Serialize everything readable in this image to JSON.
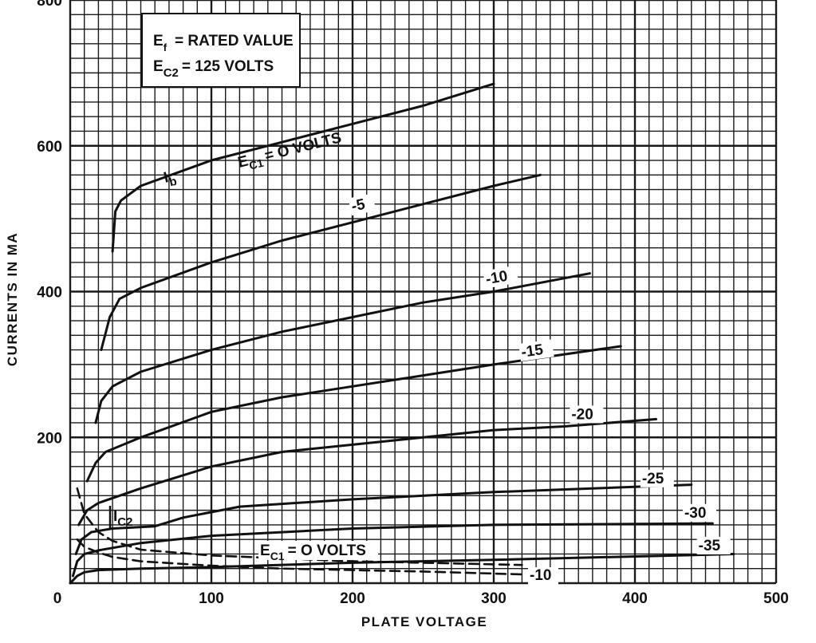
{
  "chart_data": {
    "type": "line",
    "xlabel": "PLATE VOLTAGE",
    "ylabel": "CURRENTS IN MA",
    "xlim": [
      0,
      500
    ],
    "ylim": [
      0,
      800
    ],
    "x_ticks": [
      "0",
      "100",
      "200",
      "300",
      "400",
      "500"
    ],
    "y_ticks": [
      "200",
      "400",
      "600",
      "800"
    ],
    "grid": true,
    "legend_box": {
      "line1_sym": "E",
      "line1_sub": "f",
      "line1_text": "= RATED VALUE",
      "line2_sym": "E",
      "line2_sub": "C2",
      "line2_text": "= 125 VOLTS"
    },
    "annotations": {
      "ib_sym": "I",
      "ib_sub": "b",
      "ic2_sym": "I",
      "ic2_sub": "C2",
      "ec1_0_sym": "E",
      "ec1_0_sub": "C1",
      "ec1_0_text": "= O VOLTS",
      "ic2_ec1_0_sym": "E",
      "ic2_ec1_0_sub": "C1",
      "ic2_ec1_0_text": "= O VOLTS",
      "ic2_m10": "-10"
    },
    "plate_current_series": [
      {
        "name": "O VOLTS",
        "x": [
          30,
          32,
          36,
          50,
          100,
          150,
          200,
          250,
          300
        ],
        "y": [
          455,
          510,
          525,
          545,
          580,
          605,
          630,
          655,
          685
        ]
      },
      {
        "name": "-5",
        "x": [
          22,
          28,
          35,
          50,
          100,
          150,
          200,
          250,
          300,
          333
        ],
        "y": [
          320,
          365,
          390,
          405,
          440,
          470,
          495,
          520,
          545,
          560
        ]
      },
      {
        "name": "-10",
        "x": [
          18,
          22,
          30,
          50,
          100,
          150,
          200,
          250,
          300,
          368
        ],
        "y": [
          220,
          250,
          270,
          290,
          320,
          345,
          365,
          385,
          400,
          425
        ]
      },
      {
        "name": "-15",
        "x": [
          12,
          18,
          25,
          50,
          100,
          150,
          200,
          250,
          300,
          390
        ],
        "y": [
          140,
          165,
          180,
          200,
          235,
          255,
          270,
          285,
          300,
          325
        ]
      },
      {
        "name": "-20",
        "x": [
          6,
          12,
          20,
          50,
          100,
          150,
          200,
          250,
          300,
          350,
          415
        ],
        "y": [
          80,
          100,
          110,
          130,
          160,
          180,
          190,
          200,
          210,
          215,
          225
        ]
      },
      {
        "name": "-25",
        "x": [
          4,
          8,
          15,
          30,
          60,
          80,
          120,
          200,
          300,
          440
        ],
        "y": [
          40,
          60,
          70,
          75,
          78,
          90,
          105,
          115,
          125,
          135
        ]
      },
      {
        "name": "-30",
        "x": [
          2,
          5,
          10,
          20,
          50,
          100,
          200,
          300,
          455
        ],
        "y": [
          10,
          30,
          40,
          45,
          55,
          65,
          75,
          80,
          82
        ]
      },
      {
        "name": "-35",
        "x": [
          0,
          5,
          10,
          20,
          50,
          100,
          200,
          300,
          470
        ],
        "y": [
          0,
          10,
          15,
          18,
          20,
          22,
          28,
          32,
          40
        ]
      }
    ],
    "screen_current_series": [
      {
        "name": "O VOLTS",
        "x": [
          5,
          10,
          20,
          30,
          50,
          100,
          150,
          200,
          250,
          320
        ],
        "y": [
          130,
          95,
          70,
          58,
          46,
          38,
          34,
          30,
          28,
          25
        ]
      },
      {
        "name": "-10",
        "x": [
          5,
          10,
          20,
          30,
          50,
          100,
          150,
          200,
          250,
          320
        ],
        "y": [
          60,
          50,
          42,
          36,
          30,
          24,
          20,
          18,
          16,
          12
        ]
      }
    ]
  }
}
